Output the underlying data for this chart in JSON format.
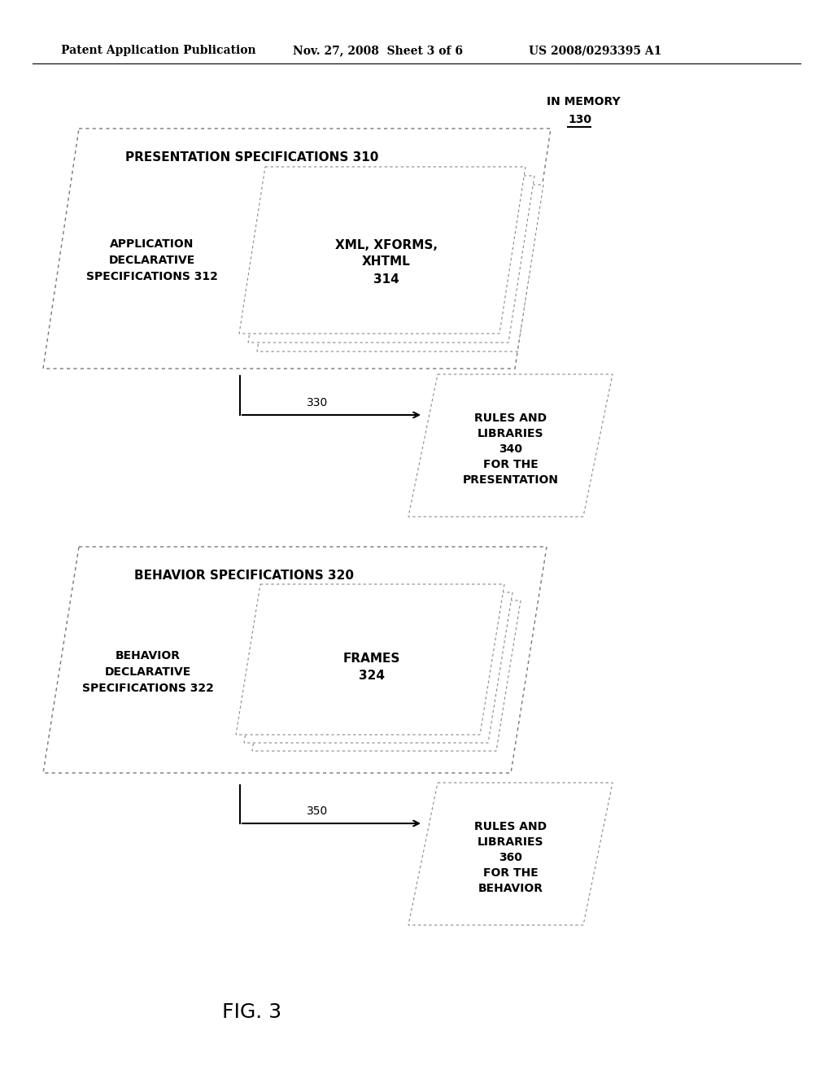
{
  "header_left": "Patent Application Publication",
  "header_mid": "Nov. 27, 2008  Sheet 3 of 6",
  "header_right": "US 2008/0293395 A1",
  "fig_label": "FIG. 3",
  "bg_color": "#ffffff",
  "in_memory_label": "IN MEMORY",
  "in_memory_num": "130",
  "pres_specs_label": "PRESENTATION SPECIFICATIONS 310",
  "app_decl_label": "APPLICATION\nDECLARATIVE\nSPECIFICATIONS 312",
  "xml_label": "XML, XFORMS,\nXHTML\n314",
  "arrow1_label": "330",
  "rules1_label": "RULES AND\nLIBRARIES\n340\nFOR THE\nPRESENTATION",
  "behav_specs_label": "BEHAVIOR SPECIFICATIONS 320",
  "behav_decl_label": "BEHAVIOR\nDECLARATIVE\nSPECIFICATIONS 322",
  "frames_label": "FRAMES\n324",
  "arrow2_label": "350",
  "rules2_label": "RULES AND\nLIBRARIES\n360\nFOR THE\nBEHAVIOR"
}
